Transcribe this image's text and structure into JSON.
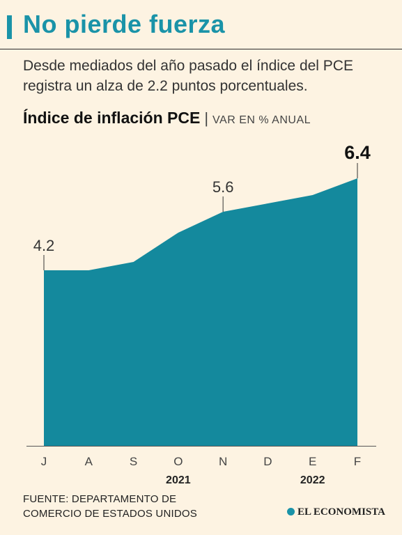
{
  "header": {
    "title": "No pierde fuerza",
    "subtitle": "Desde mediados del año pasado el índice del PCE registra un alza de 2.2 puntos porcentuales."
  },
  "chart_heading": {
    "title": "Índice de inflación PCE",
    "separator": "|",
    "unit": "VAR EN % ANUAL"
  },
  "chart_data": {
    "type": "area",
    "title": "Índice de inflación PCE",
    "ylabel": "VAR EN % ANUAL",
    "categories": [
      "J",
      "A",
      "S",
      "O",
      "N",
      "D",
      "E",
      "F"
    ],
    "values": [
      4.2,
      4.2,
      4.4,
      5.1,
      5.6,
      5.8,
      6.0,
      6.4
    ],
    "labels": [
      {
        "index": 0,
        "text": "4.2",
        "bold": false
      },
      {
        "index": 4,
        "text": "5.6",
        "bold": false
      },
      {
        "index": 7,
        "text": "6.4",
        "bold": true
      }
    ],
    "year_labels": [
      {
        "text": "2021",
        "under": "O"
      },
      {
        "text": "2022",
        "under": "E"
      }
    ],
    "ylim": [
      0,
      6.4
    ],
    "grid": false,
    "colors": {
      "fill": "#14899d",
      "text": "#333333"
    }
  },
  "footer": {
    "source_line1": "FUENTE: DEPARTAMENTO DE",
    "source_line2": "COMERCIO DE ESTADOS UNIDOS",
    "brand": "EL ECONOMISTA",
    "brand_icon": "globe-icon"
  }
}
